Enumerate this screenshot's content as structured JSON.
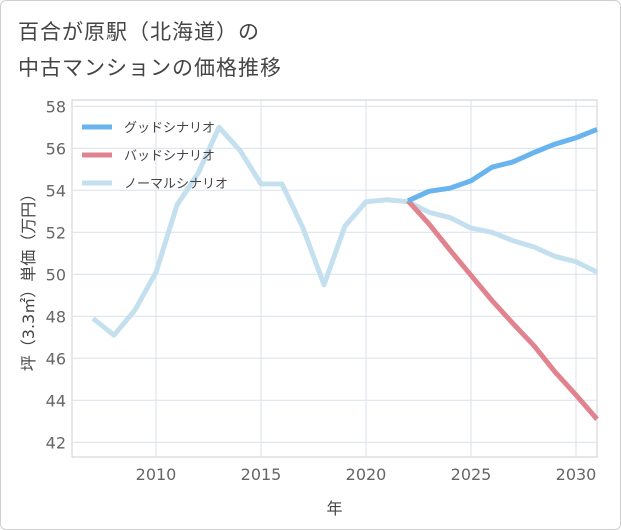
{
  "title": {
    "line1": "百合が原駅（北海道）の",
    "line2": "中古マンションの価格推移"
  },
  "chart_data": {
    "type": "line",
    "xlabel": "年",
    "ylabel": "坪（3.3㎡）単価（万円）",
    "xlim": [
      2006,
      2031
    ],
    "ylim": [
      41.3,
      58.3
    ],
    "xticks": [
      2010,
      2015,
      2020,
      2025,
      2030
    ],
    "yticks": [
      42,
      44,
      46,
      48,
      50,
      52,
      54,
      56,
      58
    ],
    "grid": true,
    "legend_position": "top-left",
    "series": [
      {
        "name": "グッドシナリオ",
        "color": "#68b4ee",
        "x": [
          2022,
          2023,
          2024,
          2025,
          2026,
          2027,
          2028,
          2029,
          2030,
          2031
        ],
        "y": [
          53.5,
          53.95,
          54.1,
          54.45,
          55.1,
          55.35,
          55.8,
          56.2,
          56.5,
          56.9
        ]
      },
      {
        "name": "バッドシナリオ",
        "color": "#e0838e",
        "x": [
          2022,
          2023,
          2024,
          2025,
          2026,
          2027,
          2028,
          2029,
          2030,
          2031
        ],
        "y": [
          53.5,
          52.4,
          51.15,
          49.95,
          48.75,
          47.65,
          46.6,
          45.35,
          44.25,
          43.1
        ]
      },
      {
        "name": "ノーマルシナリオ",
        "color": "#c4e0ef",
        "x": [
          2007,
          2008,
          2009,
          2010,
          2011,
          2012,
          2013,
          2014,
          2015,
          2016,
          2017,
          2018,
          2019,
          2020,
          2021,
          2022,
          2023,
          2024,
          2025,
          2026,
          2027,
          2028,
          2029,
          2030,
          2031
        ],
        "y": [
          47.9,
          47.1,
          48.3,
          50.1,
          53.3,
          54.8,
          57.0,
          55.9,
          54.3,
          54.3,
          52.2,
          49.5,
          52.3,
          53.45,
          53.55,
          53.45,
          52.95,
          52.7,
          52.2,
          52.0,
          51.6,
          51.3,
          50.85,
          50.6,
          50.1
        ]
      }
    ]
  }
}
